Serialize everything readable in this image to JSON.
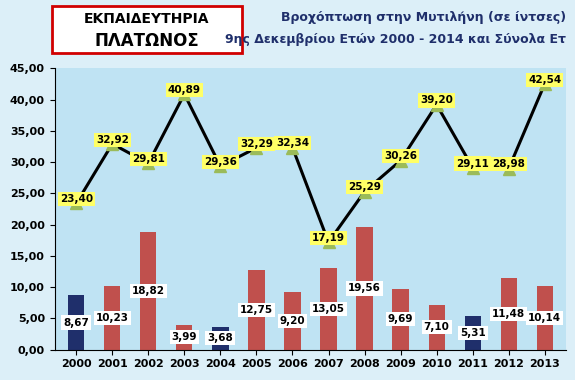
{
  "logo": [
    "ΕΚΠΑΙΔΕΥΤΗΡΙΑ",
    "ΠΛΑΤΩΝΟΣ"
  ],
  "chart_data": {
    "type": "bar",
    "title": "Βροχόπτωση στην Μυτιλήνη (σε ίντσες)",
    "subtitle": "9ης Δεκεμβρίου Ετών 2000 - 2014 και Σύνολα Ετ",
    "categories": [
      "2000",
      "2001",
      "2002",
      "2003",
      "2004",
      "2005",
      "2006",
      "2007",
      "2008",
      "2009",
      "2010",
      "2011",
      "2012",
      "2013"
    ],
    "series": [
      {
        "type": "bar",
        "colors": [
          "#1f2f6b",
          "#c0504d",
          "#c0504d",
          "#c0504d",
          "#1f2f6b",
          "#c0504d",
          "#c0504d",
          "#c0504d",
          "#c0504d",
          "#c0504d",
          "#c0504d",
          "#1f2f6b",
          "#c0504d",
          "#c0504d"
        ],
        "values": [
          8.67,
          10.23,
          18.82,
          3.99,
          3.68,
          12.75,
          9.2,
          13.05,
          19.56,
          9.69,
          7.1,
          5.31,
          11.48,
          10.14
        ],
        "value_labels": [
          "8,67",
          "10,23",
          "18,82",
          "3,99",
          "3,68",
          "12,75",
          "9,20",
          "13,05",
          "19,56",
          "9,69",
          "7,10",
          "5,31",
          "11,48",
          "10,14"
        ]
      },
      {
        "type": "line",
        "color": "#000000",
        "marker": "triangle",
        "line_style": "solid",
        "values": [
          23.4,
          32.92,
          29.81,
          40.89,
          29.36,
          32.29,
          32.34,
          17.19,
          25.29,
          30.26,
          39.2,
          29.11,
          28.98,
          42.54
        ],
        "value_labels": [
          "23,40",
          "32,92",
          "29,81",
          "40,89",
          "29,36",
          "32,29",
          "32,34",
          "17,19",
          "25,29",
          "30,26",
          "39,20",
          "29,11",
          "28,98",
          "42,54"
        ]
      }
    ],
    "ylim": [
      0,
      45
    ],
    "yticks": [
      {
        "value": 0,
        "label": "0,00"
      },
      {
        "value": 5,
        "label": "5,00"
      },
      {
        "value": 10,
        "label": "10,00"
      },
      {
        "value": 15,
        "label": "15,00"
      },
      {
        "value": 20,
        "label": "20,00"
      },
      {
        "value": 25,
        "label": "25,00"
      },
      {
        "value": 30,
        "label": "30,00"
      },
      {
        "value": 35,
        "label": "35,00"
      },
      {
        "value": 40,
        "label": "40,00"
      },
      {
        "value": 45,
        "label": "45,00"
      }
    ],
    "grid": false,
    "data_labels": true
  }
}
